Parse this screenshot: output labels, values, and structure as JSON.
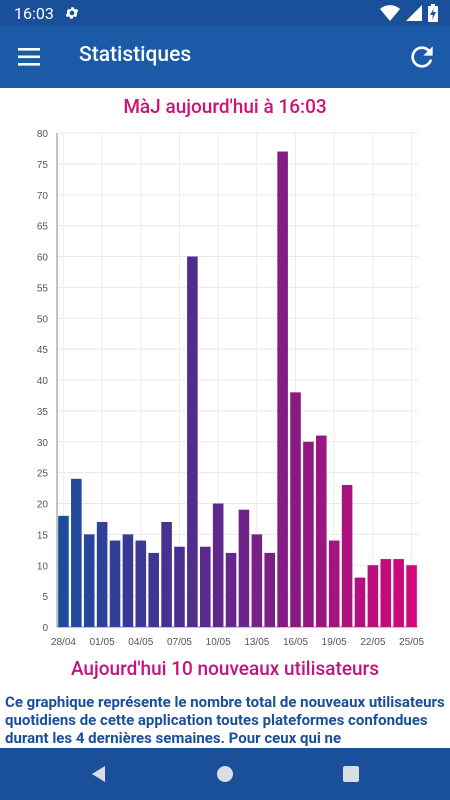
{
  "status_bar": {
    "time": "16:03",
    "icons": [
      "gear-icon",
      "wifi-icon",
      "signal-icon",
      "battery-charging-icon"
    ]
  },
  "app_bar": {
    "title": "Statistiques",
    "menu_icon": "hamburger-menu-icon",
    "refresh_icon": "refresh-icon"
  },
  "update_text": "MàJ aujourd'hui à 16:03",
  "summary_text": "Aujourd'hui 10 nouveaux utilisateurs",
  "description": "Ce graphique représente le nombre total de nouveaux utilisateurs quotidiens de cette application toutes plateformes confondues durant les 4 dernières semaines. Pour ceux qui ne",
  "nav_bar": {
    "icons": [
      "back-icon",
      "home-icon",
      "recent-apps-icon"
    ]
  },
  "chart_data": {
    "type": "bar",
    "categories": [
      "28/04",
      "29/04",
      "30/04",
      "01/05",
      "02/05",
      "03/05",
      "04/05",
      "05/05",
      "06/05",
      "07/05",
      "08/05",
      "09/05",
      "10/05",
      "11/05",
      "12/05",
      "13/05",
      "14/05",
      "15/05",
      "16/05",
      "17/05",
      "18/05",
      "19/05",
      "20/05",
      "21/05",
      "22/05",
      "23/05",
      "24/05",
      "25/05"
    ],
    "values": [
      18,
      24,
      15,
      17,
      14,
      15,
      14,
      12,
      17,
      13,
      60,
      13,
      20,
      12,
      19,
      15,
      12,
      77,
      38,
      30,
      31,
      14,
      23,
      8,
      10,
      11,
      11,
      10
    ],
    "xtick_labels": [
      "28/04",
      "01/05",
      "04/05",
      "07/05",
      "10/05",
      "13/05",
      "16/05",
      "19/05",
      "22/05",
      "25/05"
    ],
    "yticks": [
      0,
      5,
      10,
      15,
      20,
      25,
      30,
      35,
      40,
      45,
      50,
      55,
      60,
      65,
      70,
      75,
      80
    ],
    "ylim": [
      0,
      80
    ],
    "grid": true,
    "color_gradient": [
      "#1e4c9c",
      "#4a2f90",
      "#8a1a82",
      "#d2087a"
    ]
  }
}
